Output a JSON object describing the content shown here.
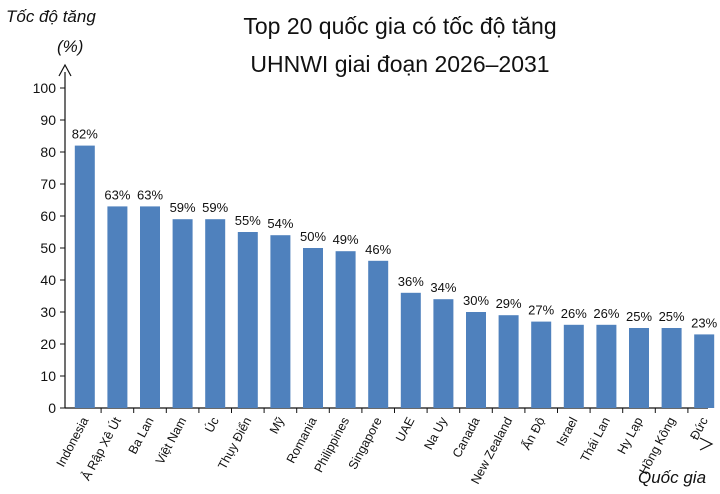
{
  "chart_data": {
    "type": "bar",
    "title": [
      "Top 20 quốc gia có tốc độ tăng",
      "UHNWI giai đoạn 2026–2031"
    ],
    "ylabel": [
      "Tốc độ tăng",
      "(%)"
    ],
    "xlabel": "Quốc gia",
    "ylim": [
      0,
      100
    ],
    "yticks": [
      "0",
      "10",
      "20",
      "30",
      "40",
      "50",
      "60",
      "70",
      "80",
      "90",
      "100"
    ],
    "categories": [
      "Indonesia",
      "Ả Rập Xê Út",
      "Ba Lan",
      "Việt Nam",
      "Úc",
      "Thụy Điển",
      "Mỹ",
      "Romania",
      "Philippines",
      "Singapore",
      "UAE",
      "Na Uy",
      "Canada",
      "New Zealand",
      "Ấn Độ",
      "Israel",
      "Thái Lan",
      "Hy Lạp",
      "Hồng Kông",
      "Đức"
    ],
    "values": [
      82,
      63,
      63,
      59,
      59,
      55,
      54,
      50,
      49,
      46,
      36,
      34,
      30,
      29,
      27,
      26,
      26,
      25,
      25,
      23
    ],
    "data_labels": [
      "82%",
      "63%",
      "63%",
      "59%",
      "59%",
      "55%",
      "54%",
      "50%",
      "49%",
      "46%",
      "36%",
      "34%",
      "30%",
      "29%",
      "27%",
      "26%",
      "26%",
      "25%",
      "25%",
      "23%"
    ],
    "bar_color": "#4f81bd",
    "grid": false
  }
}
